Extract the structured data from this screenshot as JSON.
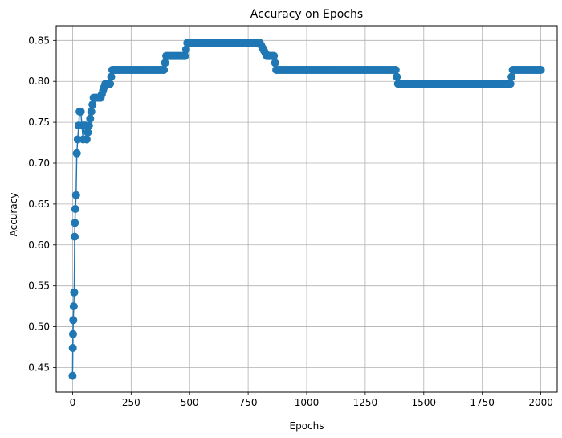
{
  "chart_data": {
    "type": "line",
    "title": "Accuracy on Epochs",
    "xlabel": "Epochs",
    "ylabel": "Accuracy",
    "xlim": [
      -70,
      2070
    ],
    "ylim": [
      0.42,
      0.868
    ],
    "xticks": [
      0,
      250,
      500,
      750,
      1000,
      1250,
      1500,
      1750,
      2000
    ],
    "yticks": [
      0.45,
      0.5,
      0.55,
      0.6,
      0.65,
      0.7,
      0.75,
      0.8,
      0.85
    ],
    "ytick_labels": [
      "0.45",
      "0.50",
      "0.55",
      "0.60",
      "0.65",
      "0.70",
      "0.75",
      "0.80",
      "0.85"
    ],
    "grid": true,
    "marker": "circle",
    "color": "#1f77b4",
    "series": [
      {
        "x": [
          0,
          1,
          2,
          3,
          5,
          7,
          9,
          10,
          12,
          15,
          18,
          22,
          26,
          30,
          35,
          40,
          45,
          50,
          55,
          60,
          70,
          80,
          90,
          100,
          120,
          140,
          150,
          160,
          170,
          180,
          200,
          240,
          280,
          320,
          360,
          390,
          400,
          430,
          460,
          480,
          490,
          520,
          560,
          600,
          640,
          680,
          720,
          760,
          800,
          830,
          840,
          860,
          870,
          900,
          1000,
          1100,
          1200,
          1300,
          1380,
          1390,
          1450,
          1550,
          1650,
          1750,
          1870,
          1880,
          1920,
          1960,
          2000
        ],
        "y": [
          0.44,
          0.474,
          0.491,
          0.508,
          0.525,
          0.542,
          0.61,
          0.627,
          0.644,
          0.661,
          0.712,
          0.729,
          0.746,
          0.763,
          0.763,
          0.746,
          0.729,
          0.746,
          0.746,
          0.729,
          0.746,
          0.763,
          0.78,
          0.78,
          0.78,
          0.797,
          0.797,
          0.797,
          0.814,
          0.814,
          0.814,
          0.814,
          0.814,
          0.814,
          0.814,
          0.814,
          0.831,
          0.831,
          0.831,
          0.831,
          0.847,
          0.847,
          0.847,
          0.847,
          0.847,
          0.847,
          0.847,
          0.847,
          0.847,
          0.831,
          0.831,
          0.831,
          0.814,
          0.814,
          0.814,
          0.814,
          0.814,
          0.814,
          0.814,
          0.797,
          0.797,
          0.797,
          0.797,
          0.797,
          0.797,
          0.814,
          0.814,
          0.814,
          0.814
        ]
      }
    ]
  }
}
